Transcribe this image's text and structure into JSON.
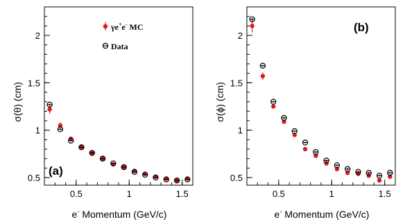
{
  "chart_data": [
    {
      "type": "scatter",
      "panel_label": "(a)",
      "xlabel": "Momentum (GeV/c)",
      "xlabel_prefix": "e",
      "xlabel_sup": "-",
      "ylabel": "σ(θ) (cm)",
      "xlim": [
        0.2,
        1.6
      ],
      "ylim": [
        0.42,
        2.3
      ],
      "xticks": [
        0.5,
        1,
        1.5
      ],
      "xtick_labels": [
        "0.5",
        "1",
        "1.5"
      ],
      "yticks": [
        0.5,
        1,
        1.5,
        2
      ],
      "ytick_labels": [
        "0.5",
        "1",
        "1.5",
        "2"
      ],
      "grid": false,
      "legend": {
        "placement": "top-center",
        "entries": [
          {
            "symbol": "filled-circle",
            "color": "#e0191b",
            "label_parts": [
              "γe",
              "+",
              "e",
              "-",
              " MC"
            ]
          },
          {
            "symbol": "open-circle",
            "color": "#000000",
            "label_parts": [
              "Data"
            ]
          }
        ]
      },
      "series": [
        {
          "name": "γe+e- MC",
          "marker": "filled-circle",
          "color": "#e0191b",
          "x": [
            0.25,
            0.35,
            0.45,
            0.55,
            0.65,
            0.75,
            0.85,
            0.95,
            1.05,
            1.15,
            1.25,
            1.35,
            1.45,
            1.55
          ],
          "y": [
            1.22,
            1.05,
            0.91,
            0.82,
            0.76,
            0.7,
            0.64,
            0.61,
            0.57,
            0.54,
            0.51,
            0.49,
            0.47,
            0.49
          ],
          "err": [
            0.05,
            0.03,
            0.02,
            0.015,
            0.01,
            0.01,
            0.01,
            0.01,
            0.01,
            0.01,
            0.01,
            0.01,
            0.015,
            0.02
          ]
        },
        {
          "name": "Data",
          "marker": "open-circle",
          "color": "#000000",
          "x": [
            0.25,
            0.35,
            0.45,
            0.55,
            0.65,
            0.75,
            0.85,
            0.95,
            1.05,
            1.15,
            1.25,
            1.35,
            1.45,
            1.55
          ],
          "y": [
            1.27,
            1.01,
            0.89,
            0.82,
            0.76,
            0.7,
            0.65,
            0.61,
            0.56,
            0.53,
            0.5,
            0.48,
            0.47,
            0.48
          ],
          "err": [
            0.01,
            0.01,
            0.01,
            0.01,
            0.01,
            0.01,
            0.01,
            0.01,
            0.01,
            0.01,
            0.01,
            0.01,
            0.01,
            0.01
          ]
        }
      ]
    },
    {
      "type": "scatter",
      "panel_label": "(b)",
      "xlabel": "Momentum (GeV/c)",
      "xlabel_prefix": "e",
      "xlabel_sup": "-",
      "ylabel": "σ(ϕ) (cm)",
      "xlim": [
        0.2,
        1.6
      ],
      "ylim": [
        0.42,
        2.3
      ],
      "xticks": [
        0.5,
        1,
        1.5
      ],
      "xtick_labels": [
        "0.5",
        "1",
        "1.5"
      ],
      "yticks": [
        0.5,
        1,
        1.5,
        2
      ],
      "ytick_labels": [
        "0.5",
        "1",
        "1.5",
        "2"
      ],
      "grid": false,
      "series": [
        {
          "name": "γe+e- MC",
          "marker": "filled-circle",
          "color": "#e0191b",
          "x": [
            0.25,
            0.35,
            0.45,
            0.55,
            0.65,
            0.75,
            0.85,
            0.95,
            1.05,
            1.15,
            1.25,
            1.35,
            1.45,
            1.55
          ],
          "y": [
            2.1,
            1.57,
            1.25,
            1.09,
            0.95,
            0.8,
            0.73,
            0.65,
            0.59,
            0.55,
            0.54,
            0.52,
            0.47,
            0.51
          ],
          "err": [
            0.07,
            0.04,
            0.02,
            0.02,
            0.02,
            0.01,
            0.01,
            0.01,
            0.01,
            0.01,
            0.01,
            0.01,
            0.01,
            0.01
          ]
        },
        {
          "name": "Data",
          "marker": "open-circle",
          "color": "#000000",
          "x": [
            0.25,
            0.35,
            0.45,
            0.55,
            0.65,
            0.75,
            0.85,
            0.95,
            1.05,
            1.15,
            1.25,
            1.35,
            1.45,
            1.55
          ],
          "y": [
            2.17,
            1.68,
            1.3,
            1.13,
            0.99,
            0.87,
            0.77,
            0.68,
            0.63,
            0.59,
            0.56,
            0.55,
            0.52,
            0.55
          ],
          "err": [
            0.01,
            0.01,
            0.01,
            0.01,
            0.01,
            0.01,
            0.01,
            0.01,
            0.01,
            0.01,
            0.01,
            0.01,
            0.01,
            0.01
          ]
        }
      ]
    }
  ]
}
